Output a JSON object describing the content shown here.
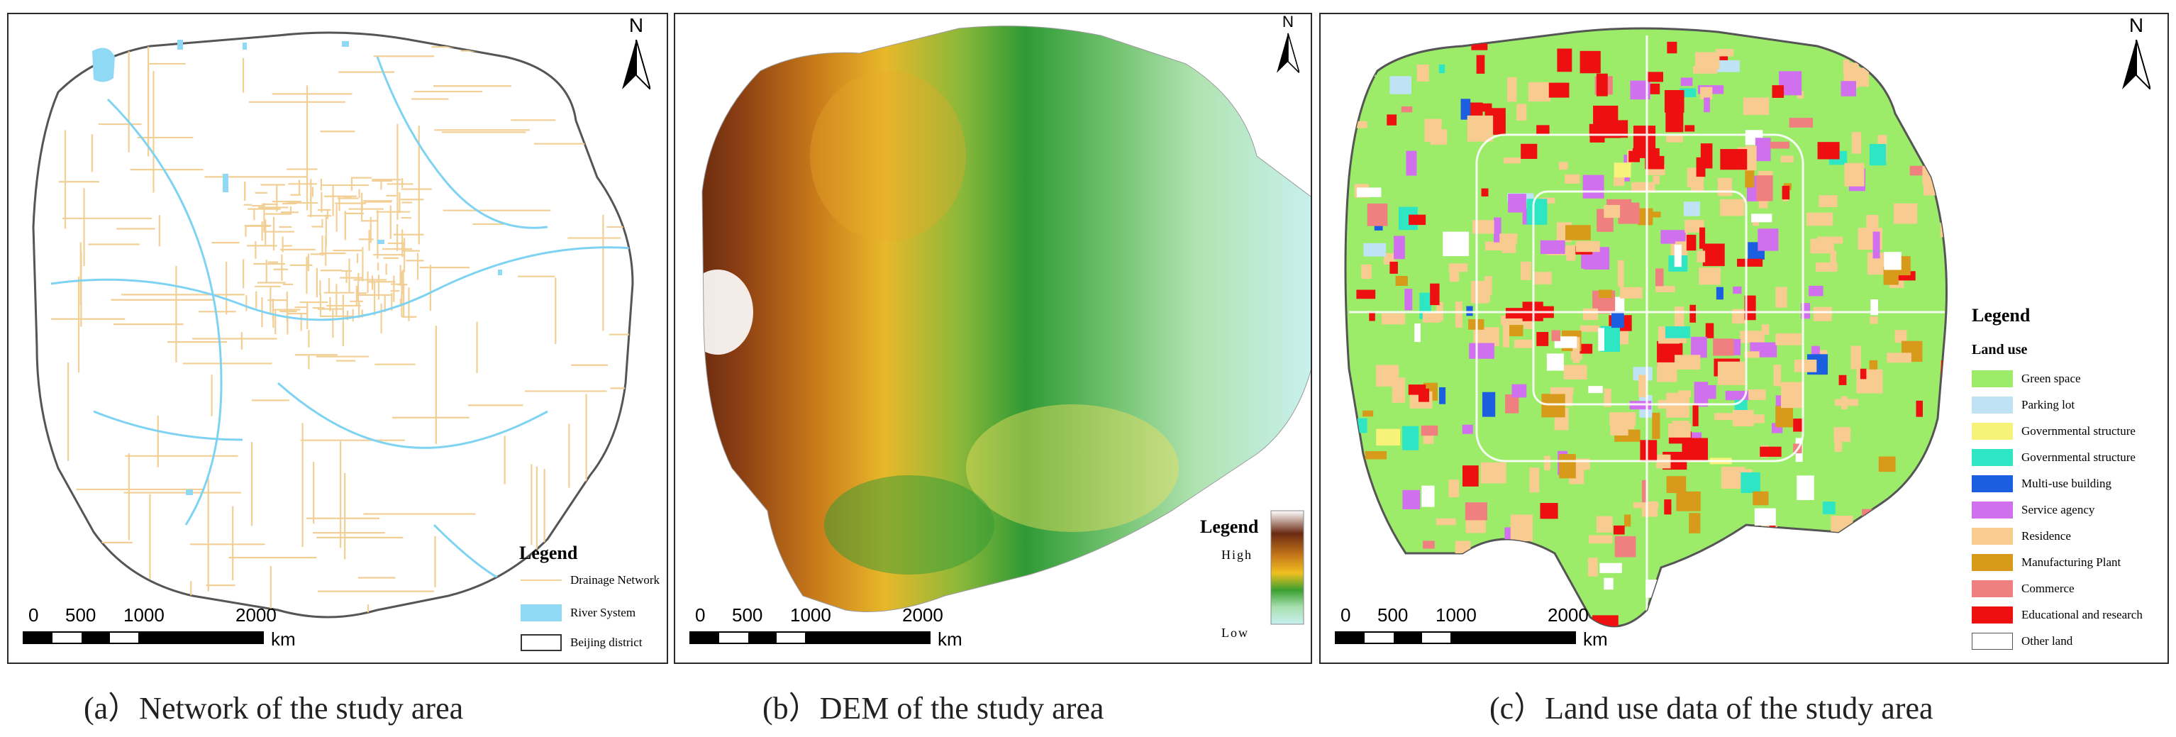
{
  "panels": [
    {
      "caption": "(a）Network of the study area",
      "legend_title": "Legend",
      "legend_items": [
        {
          "label": "Drainage Network",
          "color": "#f3d39b",
          "kind": "line"
        },
        {
          "label": "River System",
          "color": "#8fd9f5",
          "kind": "fill"
        },
        {
          "label": "Beijing district",
          "color": "#ffffff",
          "kind": "outline"
        }
      ],
      "north": "N",
      "scale": {
        "ticks": [
          "0",
          "500",
          "1000",
          "2000"
        ],
        "unit": "km"
      }
    },
    {
      "caption": "(b）DEM of the study area",
      "legend_title": "Legend",
      "legend_high": "High",
      "legend_low": "Low",
      "north": "N",
      "scale": {
        "ticks": [
          "0",
          "500",
          "1000",
          "2000"
        ],
        "unit": "km"
      },
      "ramp_colors": [
        "#ffffff",
        "#6b2a12",
        "#c87a1a",
        "#f0c020",
        "#3aa030",
        "#a8e0b0",
        "#c8f0f0"
      ]
    },
    {
      "caption": "(c）Land use data of the study area",
      "legend_title": "Legend",
      "legend_subtitle": "Land use",
      "legend_items": [
        {
          "label": "Green space",
          "color": "#9cec6a"
        },
        {
          "label": "Parking lot",
          "color": "#bfe3f5"
        },
        {
          "label": "Governmental structure",
          "color": "#f6f27a"
        },
        {
          "label": "Governmental structure",
          "color": "#2fe6c4"
        },
        {
          "label": "Multi-use building",
          "color": "#1b5fe0"
        },
        {
          "label": "Service agency",
          "color": "#d070ee"
        },
        {
          "label": "Residence",
          "color": "#f8cc90"
        },
        {
          "label": "Manufacturing Plant",
          "color": "#d89a1a"
        },
        {
          "label": "Commerce",
          "color": "#f08080"
        },
        {
          "label": "Educational and research",
          "color": "#ee1010"
        },
        {
          "label": "Other land",
          "color": "#ffffff"
        }
      ],
      "north": "N",
      "scale": {
        "ticks": [
          "0",
          "500",
          "1000",
          "2000"
        ],
        "unit": "km"
      }
    }
  ]
}
